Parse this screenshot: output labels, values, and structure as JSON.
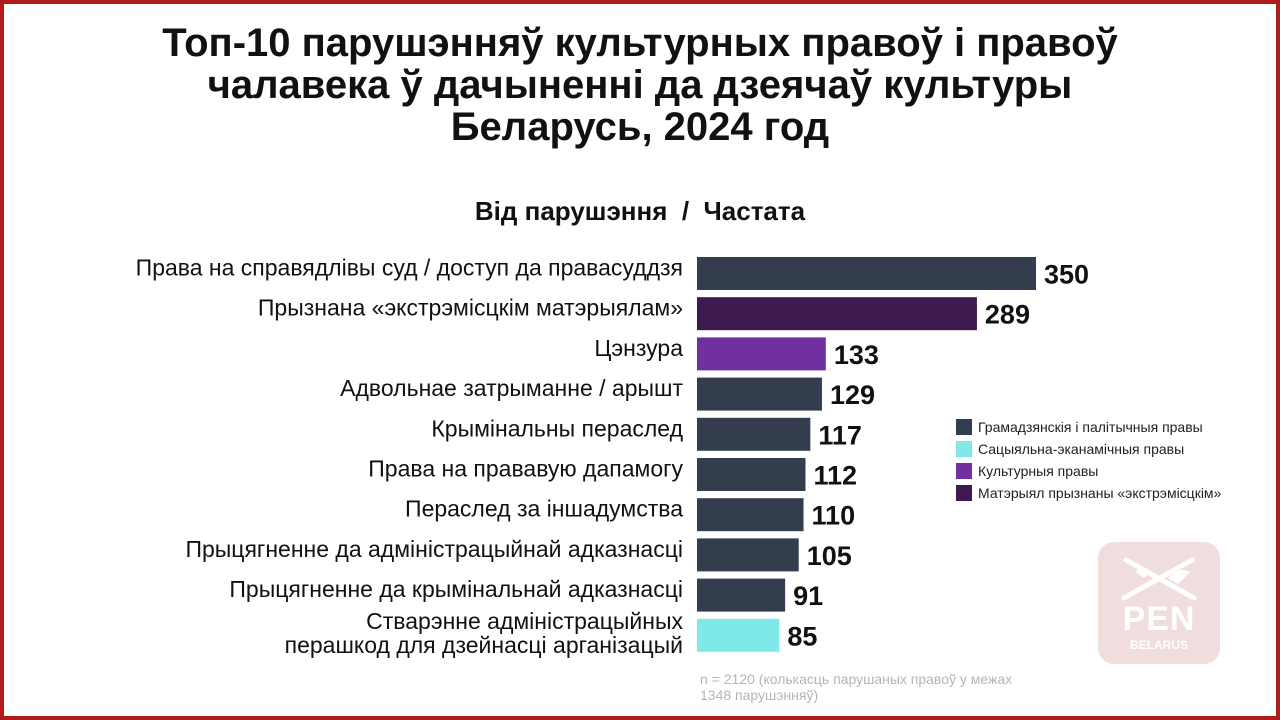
{
  "header": {
    "title_lines": [
      "Топ-10 парушэнняў культурных правоў і правоў",
      "чалавека ў дачыненні да дзеячаў культуры",
      "Беларусь, 2024 год"
    ],
    "subtitle": "Від парушэння  /  Частата"
  },
  "chart_data": {
    "type": "bar",
    "orientation": "horizontal",
    "title": "Топ-10 парушэнняў культурных правоў і правоў чалавека ў дачыненні да дзеячаў культуры Беларусь, 2024 год",
    "subtitle": "Від парушэння  /  Частата",
    "categories": [
      "Права на справядлівы суд / доступ да правасуддзя",
      "Прызнана «экстрэмісцкім матэрыялам»",
      "Цэнзура",
      "Адвольнае затрыманне / арышт",
      "Крымінальны пераслед",
      "Права на прававую дапамогу",
      "Пераслед за іншадумства",
      "Прыцягненне да адміністрацыйнай адказнасці",
      "Прыцягненне да крымінальнай адказнасці",
      "Стварэнне адміністрацыйных перашкод для дзейнасці арганізацый"
    ],
    "values": [
      350,
      289,
      133,
      129,
      117,
      112,
      110,
      105,
      91,
      85
    ],
    "bar_groups": [
      "Грамадзянскія і палітычныя правы",
      "Матэрыял прызнаны «экстрэмісцкім»",
      "Культурныя правы",
      "Грамадзянскія і палітычныя правы",
      "Грамадзянскія і палітычныя правы",
      "Грамадзянскія і палітычныя правы",
      "Грамадзянскія і палітычныя правы",
      "Грамадзянскія і палітычныя правы",
      "Грамадзянскія і палітычныя правы",
      "Сацыяльна-эканамічныя правы"
    ],
    "legend": [
      {
        "name": "Грамадзянскія і палітычныя правы",
        "color": "#333d4e"
      },
      {
        "name": "Сацыяльна-эканамічныя правы",
        "color": "#7ee9e8"
      },
      {
        "name": "Культурныя правы",
        "color": "#7030a0"
      },
      {
        "name": "Матэрыял прызнаны «экстрэмісцкім»",
        "color": "#3d1a4f"
      }
    ],
    "legend_position": "right",
    "xlim": [
      0,
      350
    ],
    "grid": false,
    "note": "n = 2120 (колькасць парушаных правоў у межах 1348 парушэнняў)"
  },
  "logo": {
    "text": "PEN",
    "subtext": "BELARUS"
  }
}
